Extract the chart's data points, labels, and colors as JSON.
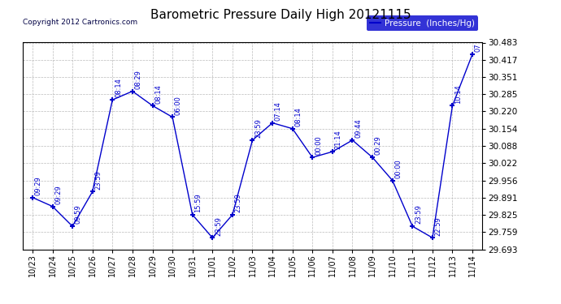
{
  "title": "Barometric Pressure Daily High 20121115",
  "copyright": "Copyright 2012 Cartronics.com",
  "legend_label": "Pressure  (Inches/Hg)",
  "x_labels": [
    "10/23",
    "10/24",
    "10/25",
    "10/26",
    "10/27",
    "10/28",
    "10/29",
    "10/30",
    "10/31",
    "11/01",
    "11/02",
    "11/03",
    "11/04",
    "11/05",
    "11/06",
    "11/07",
    "11/08",
    "11/09",
    "11/10",
    "11/11",
    "11/12",
    "11/13",
    "11/14"
  ],
  "y_values": [
    29.891,
    29.857,
    29.781,
    29.913,
    30.264,
    30.297,
    30.242,
    30.198,
    29.825,
    29.737,
    29.825,
    30.11,
    30.176,
    30.154,
    30.044,
    30.066,
    30.11,
    30.044,
    29.956,
    29.781,
    29.737,
    30.242,
    30.439
  ],
  "time_labels": [
    "09:29",
    "09:29",
    "09:59",
    "23:59",
    "08:14",
    "08:29",
    "08:14",
    "06:00",
    "15:59",
    "23:59",
    "23:59",
    "23:59",
    "07:14",
    "08:14",
    "00:00",
    "21:14",
    "09:44",
    "00:29",
    "00:00",
    "23:59",
    "22:59",
    "10:14",
    "07"
  ],
  "ylim_min": 29.693,
  "ylim_max": 30.483,
  "yticks": [
    29.693,
    29.759,
    29.825,
    29.891,
    29.956,
    30.022,
    30.088,
    30.154,
    30.22,
    30.285,
    30.351,
    30.417,
    30.483
  ],
  "line_color": "#0000cc",
  "marker_color": "#0000cc",
  "bg_color": "#ffffff",
  "grid_color": "#bbbbbb",
  "title_color": "#000000",
  "legend_bg": "#0000cc",
  "legend_text_color": "#ffffff",
  "border_color": "#000000"
}
